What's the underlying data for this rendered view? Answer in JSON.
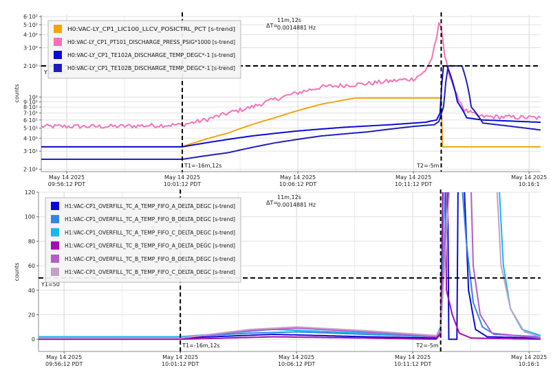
{
  "charts": [
    {
      "ylabel": "counts",
      "ylog": true,
      "yticks": [
        {
          "label": "6·10²",
          "value": 600
        },
        {
          "label": "5·10²",
          "value": 500
        },
        {
          "label": "4·10²",
          "value": 400
        },
        {
          "label": "3·10²",
          "value": 300
        },
        {
          "label": "2·10²",
          "value": 200
        },
        {
          "label": "10²",
          "value": 100
        },
        {
          "label": "9·10¹",
          "value": 90
        },
        {
          "label": "8·10¹",
          "value": 80
        },
        {
          "label": "7·10¹",
          "value": 70
        },
        {
          "label": "6·10¹",
          "value": 60
        },
        {
          "label": "5·10¹",
          "value": 50
        },
        {
          "label": "4·10¹",
          "value": 40
        },
        {
          "label": "3·10¹",
          "value": 30
        },
        {
          "label": "2·10¹",
          "value": 20
        }
      ],
      "legend": [
        {
          "label": "H0:VAC-LY_CP1_LIC100_LLCV_POSICTRL_PCT [s-trend]",
          "color": "#f5a30c"
        },
        {
          "label": "H0:VAC-LY_CP1_PT101_DISCHARGE_PRESS_PSIG*1000 [s-trend]",
          "color": "#f472b6"
        },
        {
          "label": "H0:VAC-LY_CP1_TE102A_DISCHARGE_TEMP_DEGC*-1 [s-trend]",
          "color": "#0a0ad6"
        },
        {
          "label": "H0:VAC-LY_CP1_TE102B_DISCHARGE_TEMP_DEGC*-1 [s-trend]",
          "color": "#1e1ebe"
        }
      ],
      "delta_label": "ΔT=",
      "delta_value": "11m,12s",
      "delta_freq": "0.0014881 Hz",
      "y1_label": "Y1=200",
      "t1_label": "T1=-16m,12s",
      "t2_label": "T2=-5m"
    },
    {
      "ylabel": "counts",
      "ylog": false,
      "yticks": [
        {
          "label": "120",
          "value": 120
        },
        {
          "label": "100",
          "value": 100
        },
        {
          "label": "80",
          "value": 80
        },
        {
          "label": "60",
          "value": 60
        },
        {
          "label": "40",
          "value": 40
        },
        {
          "label": "20",
          "value": 20
        },
        {
          "label": "0",
          "value": 0
        }
      ],
      "legend": [
        {
          "label": "H1:VAC-CP1_OVERFILL_TC_A_TEMP_FIFO_A_DELTA_DEGC [s-trend]",
          "color": "#0a0ad6"
        },
        {
          "label": "H1:VAC-CP1_OVERFILL_TC_A_TEMP_FIFO_B_DELTA_DEGC [s-trend]",
          "color": "#2f86e3"
        },
        {
          "label": "H1:VAC-CP1_OVERFILL_TC_A_TEMP_FIFO_C_DELTA_DEGC [s-trend]",
          "color": "#16b8ee"
        },
        {
          "label": "H1:VAC-CP1_OVERFILL_TC_B_TEMP_FIFO_A_DELTA_DEGC [s-trend]",
          "color": "#a10fb0"
        },
        {
          "label": "H1:VAC-CP1_OVERFILL_TC_B_TEMP_FIFO_B_DELTA_DEGC [s-trend]",
          "color": "#b45cc9"
        },
        {
          "label": "H1:VAC-CP1_OVERFILL_TC_B_TEMP_FIFO_C_DELTA_DEGC [s-trend]",
          "color": "#c4a0c8"
        }
      ],
      "delta_label": "ΔT=",
      "delta_value": "11m,12s",
      "delta_freq": "0.0014881 Hz",
      "y1_label": "Y1=50",
      "t1_label": "T1=-16m,12s",
      "t2_label": "T2=-5m"
    }
  ],
  "x_ticks": [
    {
      "date": "May 14 2025",
      "time": "09:56:12 PDT"
    },
    {
      "date": "May 14 2025",
      "time": "10:01:12 PDT"
    },
    {
      "date": "May 14 2025",
      "time": "10:06:12 PDT"
    },
    {
      "date": "May 14 2025",
      "time": "10:11:12 PDT"
    },
    {
      "date": "May 14 2025",
      "time": "10:16:1"
    }
  ],
  "chart_data": [
    {
      "type": "line",
      "ylabel": "counts",
      "yscale": "log",
      "ylim": [
        19,
        620
      ],
      "x_unit": "minutes after 09:56:12 PDT",
      "xlim": [
        -1.1,
        20.5
      ],
      "cursors": {
        "T1": 5.0,
        "T2": 16.2,
        "Y1": 200
      },
      "series": [
        {
          "name": "H0:VAC-LY_CP1_LIC100_LLCV_POSICTRL_PCT [s-trend]",
          "color": "#f5a30c",
          "noise": 0,
          "points": [
            [
              -1.1,
              33
            ],
            [
              5,
              33
            ],
            [
              7,
              45
            ],
            [
              9,
              63
            ],
            [
              11,
              85
            ],
            [
              12.5,
              98
            ],
            [
              16.2,
              98
            ],
            [
              16.25,
              33
            ],
            [
              20.5,
              33
            ]
          ]
        },
        {
          "name": "H0:VAC-LY_CP1_PT101_DISCHARGE_PRESS_PSIG*1000 [s-trend]",
          "color": "#f472b6",
          "noise": 0.05,
          "points": [
            [
              -1.1,
              52
            ],
            [
              2,
              52
            ],
            [
              5,
              54
            ],
            [
              6,
              60
            ],
            [
              8,
              80
            ],
            [
              10,
              110
            ],
            [
              11,
              125
            ],
            [
              13,
              135
            ],
            [
              15,
              150
            ],
            [
              15.5,
              175
            ],
            [
              15.8,
              240
            ],
            [
              16,
              380
            ],
            [
              16.1,
              500
            ],
            [
              16.2,
              450
            ],
            [
              16.35,
              250
            ],
            [
              16.5,
              180
            ],
            [
              16.8,
              110
            ],
            [
              17.2,
              75
            ],
            [
              17.8,
              65
            ],
            [
              20.5,
              63
            ]
          ]
        },
        {
          "name": "H0:VAC-LY_CP1_TE102A_DISCHARGE_TEMP_DEGC*-1 [s-trend]",
          "color": "#0a0ad6",
          "noise": 0,
          "points": [
            [
              -1.1,
              33
            ],
            [
              5,
              33
            ],
            [
              6,
              36
            ],
            [
              8,
              42
            ],
            [
              10,
              47
            ],
            [
              12,
              51
            ],
            [
              14,
              54
            ],
            [
              15.5,
              57
            ],
            [
              16,
              60
            ],
            [
              16.15,
              70
            ],
            [
              16.3,
              200
            ],
            [
              16.45,
              200
            ],
            [
              16.9,
              90
            ],
            [
              17.3,
              63
            ],
            [
              18,
              60
            ],
            [
              20.5,
              57
            ]
          ]
        },
        {
          "name": "H0:VAC-LY_CP1_TE102B_DISCHARGE_TEMP_DEGC*-1 [s-trend]",
          "color": "#1e1ebe",
          "noise": 0,
          "points": [
            [
              -1.1,
              25
            ],
            [
              5,
              25
            ],
            [
              6,
              27
            ],
            [
              7,
              29
            ],
            [
              9,
              36
            ],
            [
              11,
              42
            ],
            [
              13,
              46
            ],
            [
              15,
              52
            ],
            [
              15.9,
              54
            ],
            [
              16.1,
              58
            ],
            [
              16.3,
              80
            ],
            [
              16.5,
              200
            ],
            [
              17.1,
              200
            ],
            [
              17.5,
              80
            ],
            [
              18,
              56
            ],
            [
              20.5,
              48
            ]
          ]
        }
      ]
    },
    {
      "type": "line",
      "ylabel": "counts",
      "yscale": "linear",
      "ylim": [
        -10,
        120
      ],
      "x_unit": "minutes after 09:56:12 PDT",
      "xlim": [
        -1.1,
        20.5
      ],
      "cursors": {
        "T1": 5.0,
        "T2": 16.2,
        "Y1": 50
      },
      "series": [
        {
          "name": "H1:VAC-CP1_OVERFILL_TC_A_TEMP_FIFO_A_DELTA_DEGC [s-trend]",
          "color": "#0a0ad6",
          "noise": 0,
          "points": [
            [
              -1.1,
              1
            ],
            [
              5,
              1
            ],
            [
              9,
              4
            ],
            [
              13,
              2
            ],
            [
              16,
              1
            ],
            [
              16.2,
              6
            ],
            [
              16.3,
              130
            ],
            [
              16.5,
              130
            ],
            [
              16.55,
              0
            ],
            [
              16.9,
              0
            ],
            [
              16.95,
              130
            ],
            [
              17.2,
              130
            ],
            [
              17.4,
              40
            ],
            [
              17.7,
              8
            ],
            [
              18.2,
              2
            ],
            [
              20.5,
              1
            ]
          ]
        },
        {
          "name": "H1:VAC-CP1_OVERFILL_TC_A_TEMP_FIFO_B_DELTA_DEGC [s-trend]",
          "color": "#2f86e3",
          "noise": 0,
          "points": [
            [
              -1.1,
              2
            ],
            [
              5,
              2
            ],
            [
              8,
              5
            ],
            [
              10,
              6
            ],
            [
              13,
              4
            ],
            [
              16,
              2
            ],
            [
              16.2,
              8
            ],
            [
              16.3,
              130
            ],
            [
              17.1,
              130
            ],
            [
              17.3,
              80
            ],
            [
              17.6,
              30
            ],
            [
              18,
              10
            ],
            [
              18.5,
              4
            ],
            [
              20.5,
              2
            ]
          ]
        },
        {
          "name": "H1:VAC-CP1_OVERFILL_TC_A_TEMP_FIFO_C_DELTA_DEGC [s-trend]",
          "color": "#16b8ee",
          "noise": 0,
          "points": [
            [
              -1.1,
              2
            ],
            [
              5,
              2
            ],
            [
              9,
              8
            ],
            [
              13,
              5
            ],
            [
              16,
              2
            ],
            [
              16.2,
              10
            ],
            [
              16.4,
              130
            ],
            [
              18.7,
              130
            ],
            [
              18.9,
              60
            ],
            [
              19.2,
              25
            ],
            [
              19.7,
              8
            ],
            [
              20.5,
              3
            ]
          ]
        },
        {
          "name": "H1:VAC-CP1_OVERFILL_TC_B_TEMP_FIFO_A_DELTA_DEGC [s-trend]",
          "color": "#a10fb0",
          "noise": 0,
          "points": [
            [
              -1.1,
              0
            ],
            [
              5,
              0
            ],
            [
              9,
              2
            ],
            [
              13,
              1
            ],
            [
              16,
              0
            ],
            [
              16.2,
              4
            ],
            [
              16.3,
              130
            ],
            [
              16.4,
              130
            ],
            [
              16.45,
              40
            ],
            [
              16.7,
              20
            ],
            [
              17,
              5
            ],
            [
              17.5,
              1
            ],
            [
              20.5,
              0
            ]
          ]
        },
        {
          "name": "H1:VAC-CP1_OVERFILL_TC_B_TEMP_FIFO_B_DELTA_DEGC [s-trend]",
          "color": "#b45cc9",
          "noise": 0,
          "points": [
            [
              -1.1,
              1
            ],
            [
              5,
              1
            ],
            [
              8,
              7
            ],
            [
              10,
              9
            ],
            [
              13,
              6
            ],
            [
              16,
              2
            ],
            [
              16.2,
              6
            ],
            [
              16.5,
              130
            ],
            [
              17.5,
              130
            ],
            [
              17.6,
              60
            ],
            [
              17.9,
              20
            ],
            [
              18.4,
              5
            ],
            [
              20.5,
              1
            ]
          ]
        },
        {
          "name": "H1:VAC-CP1_OVERFILL_TC_B_TEMP_FIFO_C_DELTA_DEGC [s-trend]",
          "color": "#c4a0c8",
          "noise": 0,
          "points": [
            [
              -1.1,
              1
            ],
            [
              5,
              1
            ],
            [
              8,
              8
            ],
            [
              10,
              10
            ],
            [
              13,
              7
            ],
            [
              16,
              3
            ],
            [
              16.2,
              8
            ],
            [
              16.6,
              130
            ],
            [
              18.6,
              130
            ],
            [
              18.8,
              60
            ],
            [
              19.2,
              25
            ],
            [
              19.8,
              6
            ],
            [
              20.5,
              2
            ]
          ]
        }
      ]
    }
  ]
}
